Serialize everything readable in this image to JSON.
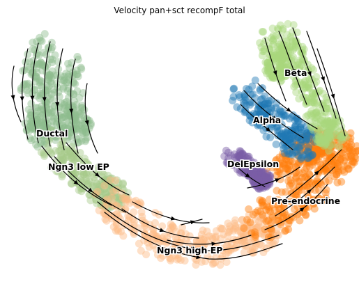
{
  "chart_data": {
    "type": "scatter",
    "title": "Velocity pan+sct recompF total",
    "xlabel": "",
    "ylabel": "",
    "grid": false,
    "axes_visible": false,
    "overlay": "velocity streamlines with arrowheads",
    "categories": [
      "Ductal",
      "Ngn3 low EP",
      "Ngn3 high EP",
      "Pre-endocrine",
      "DelEpsilon",
      "Alpha",
      "Beta"
    ],
    "series": [
      {
        "name": "Ductal",
        "color": "#8fbc8f"
      },
      {
        "name": "Ngn3 low EP",
        "color": "#a6c98a"
      },
      {
        "name": "Ngn3 high EP",
        "color": "#fdbb84"
      },
      {
        "name": "Pre-endocrine",
        "color": "#ff7f0e"
      },
      {
        "name": "DelEpsilon",
        "color": "#7b5ea7"
      },
      {
        "name": "Alpha",
        "color": "#1f77b4"
      },
      {
        "name": "Beta",
        "color": "#a9d67c"
      }
    ]
  }
}
